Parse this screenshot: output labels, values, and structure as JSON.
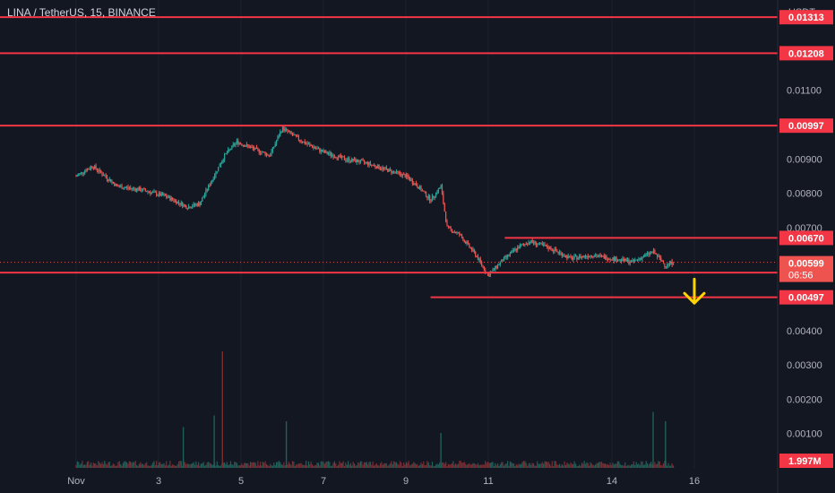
{
  "header": {
    "title": "LINA / TetherUS, 15, BINANCE"
  },
  "price_axis": {
    "unit": "USDT",
    "ticks": [
      "0.00100",
      "0.00200",
      "0.00300",
      "0.00400",
      "0.00700",
      "0.00800",
      "0.00900",
      "0.01100"
    ],
    "current_price": "0.00599",
    "countdown": "06:56"
  },
  "volume_badge": "1.997M",
  "colors": {
    "background": "#131722",
    "up": "#26a69a",
    "down": "#ef5350",
    "level_line": "#f23645",
    "arrow": "#ffd400",
    "axis_text": "#b2b5be"
  },
  "chart_data": {
    "type": "candlestick",
    "x_tick_labels": [
      "Nov",
      "3",
      "5",
      "7",
      "9",
      "11",
      "14",
      "16"
    ],
    "ylim": [
      0,
      0.0135
    ],
    "price_series": [
      {
        "day": 0.0,
        "price": 0.0085
      },
      {
        "day": 0.4,
        "price": 0.0088
      },
      {
        "day": 1.0,
        "price": 0.0082
      },
      {
        "day": 1.6,
        "price": 0.0081
      },
      {
        "day": 2.2,
        "price": 0.0079
      },
      {
        "day": 2.7,
        "price": 0.0076
      },
      {
        "day": 3.0,
        "price": 0.0077
      },
      {
        "day": 3.3,
        "price": 0.0084
      },
      {
        "day": 3.6,
        "price": 0.0091
      },
      {
        "day": 3.9,
        "price": 0.0095
      },
      {
        "day": 4.3,
        "price": 0.0093
      },
      {
        "day": 4.7,
        "price": 0.0091
      },
      {
        "day": 5.0,
        "price": 0.0099
      },
      {
        "day": 5.5,
        "price": 0.0095
      },
      {
        "day": 6.0,
        "price": 0.0092
      },
      {
        "day": 6.5,
        "price": 0.009
      },
      {
        "day": 7.0,
        "price": 0.0089
      },
      {
        "day": 7.5,
        "price": 0.0087
      },
      {
        "day": 8.0,
        "price": 0.0085
      },
      {
        "day": 8.3,
        "price": 0.0082
      },
      {
        "day": 8.6,
        "price": 0.0078
      },
      {
        "day": 8.85,
        "price": 0.0082
      },
      {
        "day": 9.0,
        "price": 0.007
      },
      {
        "day": 9.3,
        "price": 0.0068
      },
      {
        "day": 9.7,
        "price": 0.0062
      },
      {
        "day": 10.0,
        "price": 0.0056
      },
      {
        "day": 10.3,
        "price": 0.006
      },
      {
        "day": 10.7,
        "price": 0.0064
      },
      {
        "day": 11.0,
        "price": 0.0066
      },
      {
        "day": 11.5,
        "price": 0.0064
      },
      {
        "day": 12.0,
        "price": 0.0061
      },
      {
        "day": 12.5,
        "price": 0.0062
      },
      {
        "day": 13.0,
        "price": 0.0061
      },
      {
        "day": 13.5,
        "price": 0.006
      },
      {
        "day": 14.0,
        "price": 0.0063
      },
      {
        "day": 14.3,
        "price": 0.0059
      },
      {
        "day": 14.5,
        "price": 0.006
      }
    ],
    "volume_spikes": [
      {
        "day": 3.55,
        "volume_fraction": 1.0
      },
      {
        "day": 3.35,
        "volume_fraction": 0.45
      },
      {
        "day": 5.1,
        "volume_fraction": 0.4
      },
      {
        "day": 2.6,
        "volume_fraction": 0.35
      },
      {
        "day": 8.85,
        "volume_fraction": 0.3
      },
      {
        "day": 14.0,
        "volume_fraction": 0.48
      },
      {
        "day": 14.3,
        "volume_fraction": 0.4
      }
    ],
    "horizontal_levels": [
      {
        "price": 0.01313,
        "label": "0.01313",
        "from_day": -1
      },
      {
        "price": 0.01208,
        "label": "0.01208",
        "from_day": -1
      },
      {
        "price": 0.00997,
        "label": "0.00997",
        "from_day": -1
      },
      {
        "price": 0.0067,
        "label": "0.00670",
        "from_day": 10.4
      },
      {
        "price": 0.00569,
        "label": "0.00569",
        "from_day": -1
      },
      {
        "price": 0.00497,
        "label": "0.00497",
        "from_day": 8.6
      }
    ],
    "annotations": [
      {
        "type": "arrow-down",
        "day": 15.0,
        "from_price": 0.0055,
        "to_price": 0.0048
      }
    ]
  }
}
